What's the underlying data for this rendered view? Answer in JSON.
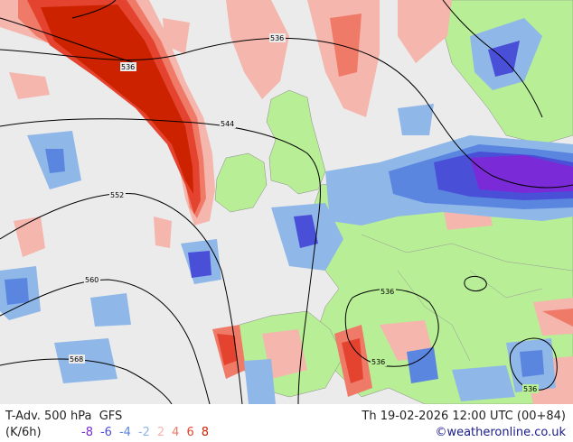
{
  "footer": {
    "product": "T-Adv. 500 hPa",
    "model": "GFS",
    "datetime": "Th 19-02-2026 12:00 UTC (00+84)",
    "units": "(K/6h)",
    "credit": "©weatheronline.co.uk"
  },
  "legend": [
    {
      "label": "-8",
      "color": "#7a2ad6"
    },
    {
      "label": "-6",
      "color": "#4a4fd8"
    },
    {
      "label": "-4",
      "color": "#5a86e0"
    },
    {
      "label": "-2",
      "color": "#8fb7e8"
    },
    {
      "label": "2",
      "color": "#f5b6ae"
    },
    {
      "label": "4",
      "color": "#ef7a68"
    },
    {
      "label": "6",
      "color": "#e4442f"
    },
    {
      "label": "8",
      "color": "#cc2200"
    }
  ],
  "contour_labels": [
    "536",
    "536",
    "544",
    "552",
    "560",
    "568",
    "536",
    "536",
    "536"
  ],
  "colors": {
    "sea": "#ebebeb",
    "land": "#b8ee95",
    "contour": "#000000"
  }
}
